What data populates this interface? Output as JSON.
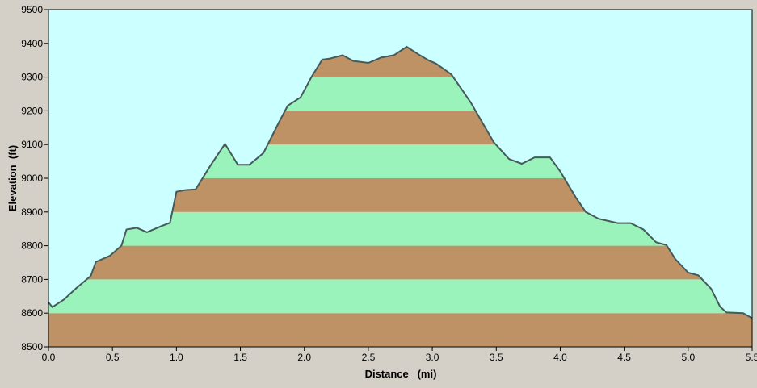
{
  "chart_data": {
    "type": "area",
    "title": "",
    "xlabel": "Distance   (mi)",
    "ylabel": "Elevation  (ft)",
    "xlim": [
      0.0,
      5.5
    ],
    "ylim": [
      8500,
      9500
    ],
    "x_ticks": [
      0.0,
      0.5,
      1.0,
      1.5,
      2.0,
      2.5,
      3.0,
      3.5,
      4.0,
      4.5,
      5.0,
      5.5
    ],
    "x_tick_labels": [
      "0.0",
      "0.5",
      "1.0",
      "1.5",
      "2.0",
      "2.5",
      "3.0",
      "3.5",
      "4.0",
      "4.5",
      "5.0",
      "5.5"
    ],
    "y_ticks": [
      8500,
      8600,
      8700,
      8800,
      8900,
      9000,
      9100,
      9200,
      9300,
      9400,
      9500
    ],
    "y_tick_labels": [
      "8500",
      "8600",
      "8700",
      "8800",
      "8900",
      "9000",
      "9100",
      "9200",
      "9300",
      "9400",
      "9500"
    ],
    "band_interval": 100,
    "colors": {
      "background": "#d4d0c8",
      "plot_background": "#ccffff",
      "band_brown": "#bf9265",
      "band_green": "#99f3bb",
      "profile_line": "#465a5a"
    },
    "series": [
      {
        "x": [
          0.0,
          0.03,
          0.12,
          0.22,
          0.33,
          0.37,
          0.48,
          0.57,
          0.61,
          0.69,
          0.77,
          0.88,
          0.95,
          1.0,
          1.07,
          1.15,
          1.27,
          1.38,
          1.48,
          1.57,
          1.68,
          1.8,
          1.87,
          1.97,
          2.06,
          2.14,
          2.2,
          2.3,
          2.38,
          2.5,
          2.6,
          2.7,
          2.8,
          2.89,
          2.97,
          3.03,
          3.15,
          3.3,
          3.48,
          3.6,
          3.7,
          3.8,
          3.92,
          4.0,
          4.12,
          4.2,
          4.3,
          4.45,
          4.55,
          4.65,
          4.75,
          4.83,
          4.9,
          5.0,
          5.08,
          5.18,
          5.25,
          5.3,
          5.43,
          5.5
        ],
        "values": [
          8632,
          8618,
          8640,
          8675,
          8710,
          8752,
          8770,
          8800,
          8848,
          8853,
          8840,
          8858,
          8868,
          8960,
          8965,
          8967,
          9040,
          9102,
          9040,
          9040,
          9075,
          9165,
          9215,
          9240,
          9303,
          9352,
          9355,
          9365,
          9348,
          9342,
          9358,
          9365,
          9390,
          9368,
          9350,
          9340,
          9308,
          9225,
          9107,
          9057,
          9043,
          9062,
          9062,
          9020,
          8944,
          8900,
          8880,
          8867,
          8867,
          8848,
          8810,
          8802,
          8760,
          8720,
          8712,
          8672,
          8619,
          8602,
          8600,
          8585
        ]
      }
    ]
  }
}
